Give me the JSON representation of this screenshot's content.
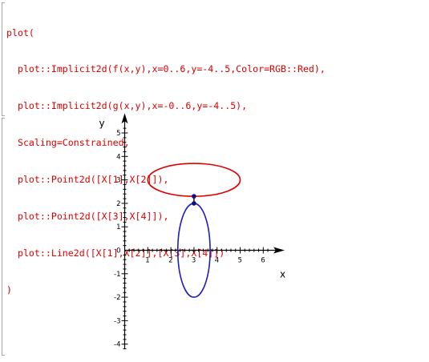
{
  "input": {
    "lines": [
      "plot(",
      "  plot::Implicit2d(f(x,y),x=0..6,y=-4..5,Color=RGB::Red),",
      "  plot::Implicit2d(g(x,y),x=-0..6,y=-4..5),",
      "  Scaling=Constrained,",
      "  plot::Point2d([X[1],X[2]]),",
      "  plot::Point2d([X[3],X[4]]),",
      "  plot::Line2d([X[1],X[2]],[X[3],X[4]])",
      ")"
    ]
  },
  "colors": {
    "code_text": "#e00000",
    "red_curve": "#e00000",
    "blue_curve": "#1f1fbf",
    "points": "#10107a",
    "axes": "#000000",
    "bracket": "#a8a8a8"
  },
  "plot": {
    "x_axis_label": "x",
    "y_axis_label": "y",
    "x_tick_labels": [
      "1",
      "2",
      "3",
      "4",
      "5",
      "6"
    ],
    "y_tick_labels": [
      "-4",
      "-3",
      "-2",
      "-1",
      "0",
      "1",
      "2",
      "3",
      "4",
      "5"
    ]
  },
  "chart_data": {
    "type": "scatter",
    "title": "",
    "xlabel": "x",
    "ylabel": "y",
    "xlim": [
      0,
      6.3
    ],
    "ylim": [
      -4.2,
      5.3
    ],
    "grid": false,
    "series": [
      {
        "kind": "ellipse",
        "color": "#e00000",
        "center": [
          3,
          3
        ],
        "radius_x": 2,
        "radius_y": 0.7
      },
      {
        "kind": "ellipse",
        "color": "#1f1fbf",
        "center": [
          3,
          0
        ],
        "radius_x": 0.7,
        "radius_y": 2
      },
      {
        "kind": "points",
        "color": "#10107a",
        "points": [
          [
            3,
            2.3
          ],
          [
            3,
            2
          ]
        ]
      },
      {
        "kind": "segment",
        "color": "#000000",
        "points": [
          [
            3,
            2.3
          ],
          [
            3,
            2
          ]
        ]
      }
    ]
  }
}
